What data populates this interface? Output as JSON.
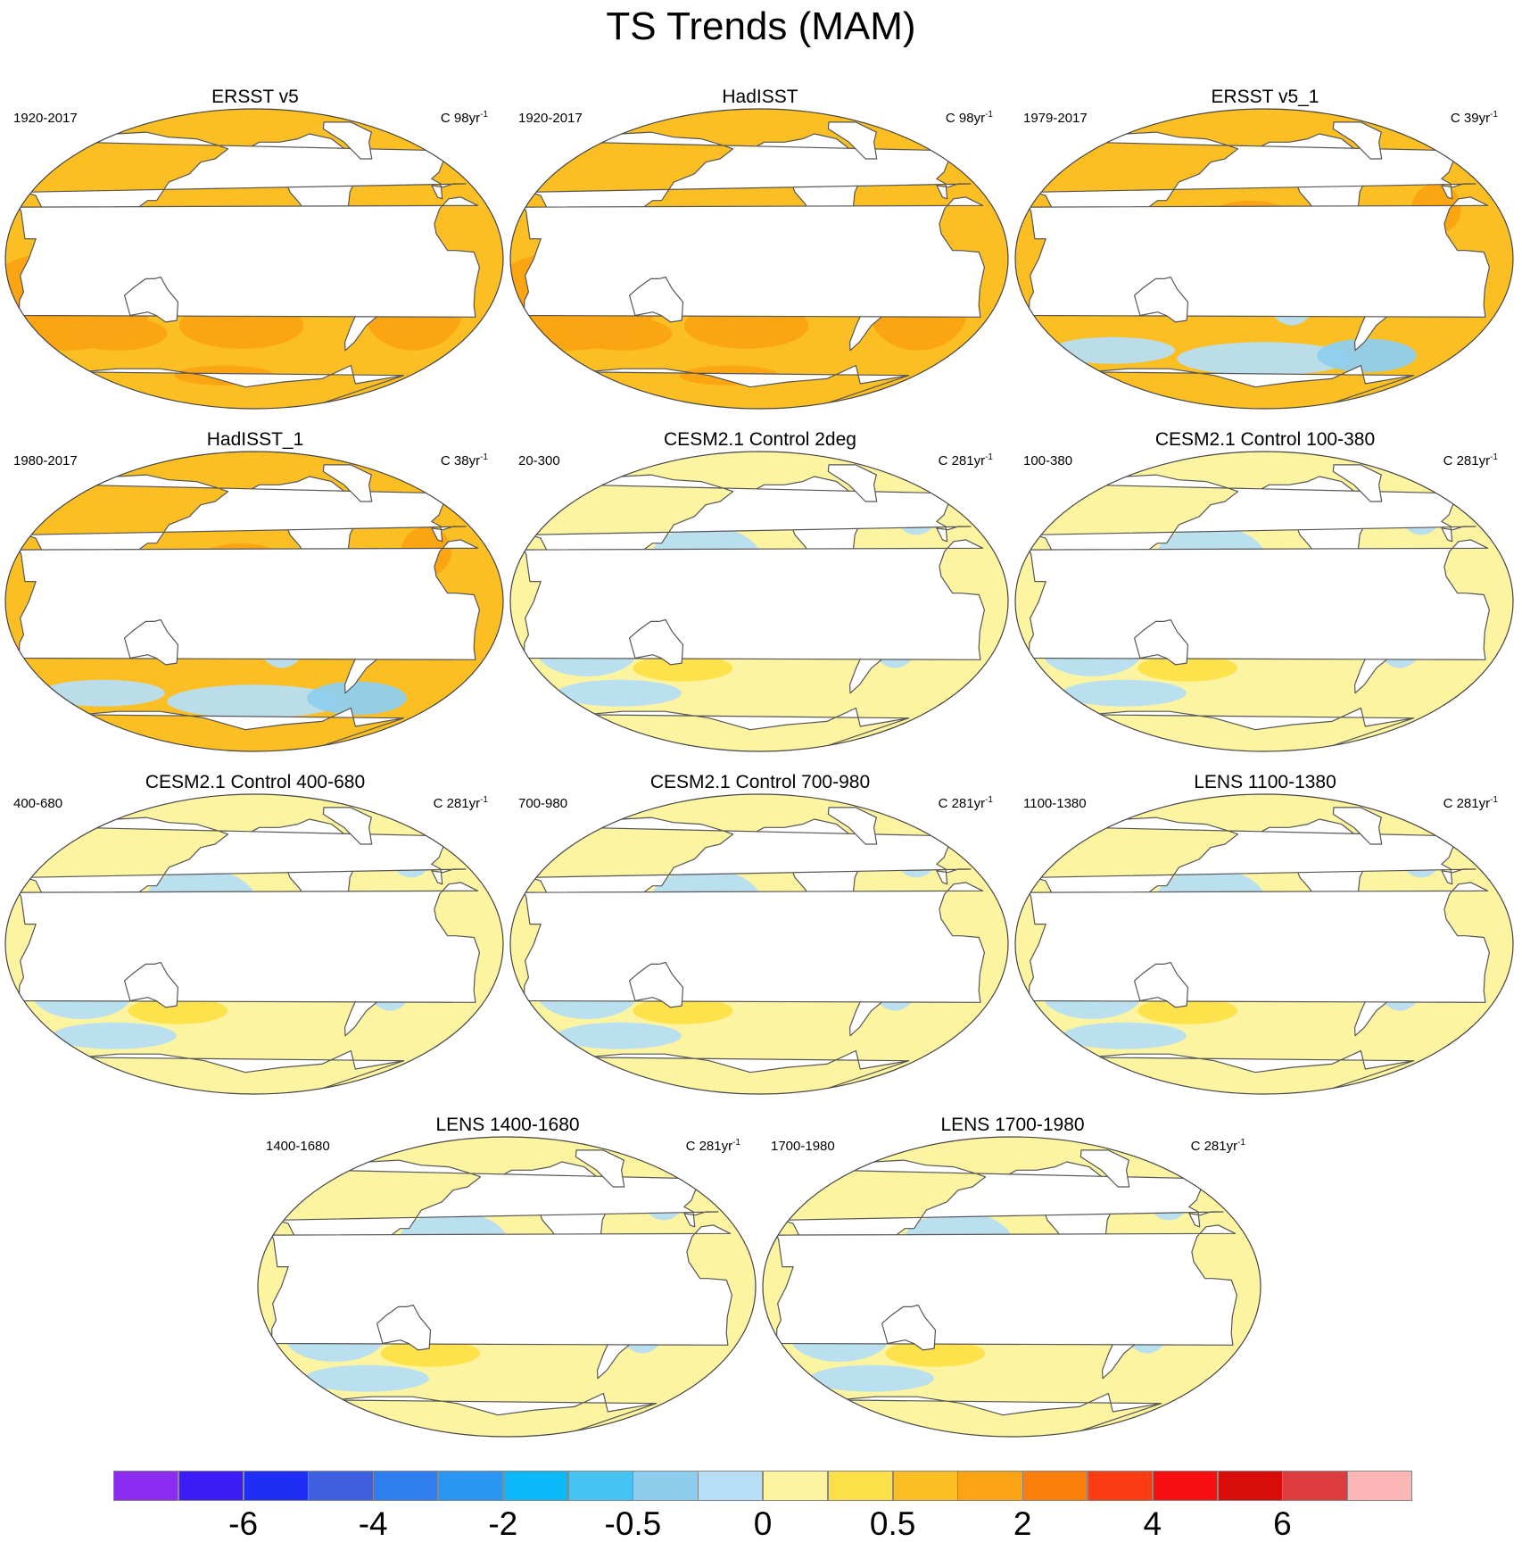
{
  "title": "TS Trends (MAM)",
  "panels": [
    {
      "title": "ERSST v5",
      "period": "1920-2017",
      "units": "C 98yr",
      "units_exp": "-1",
      "pattern": "warm"
    },
    {
      "title": "HadISST",
      "period": "1920-2017",
      "units": "C 98yr",
      "units_exp": "-1",
      "pattern": "warm"
    },
    {
      "title": "ERSST v5_1",
      "period": "1979-2017",
      "units": "C 39yr",
      "units_exp": "-1",
      "pattern": "recent"
    },
    {
      "title": "HadISST_1",
      "period": "1980-2017",
      "units": "C 38yr",
      "units_exp": "-1",
      "pattern": "recent"
    },
    {
      "title": "CESM2.1 Control 2deg",
      "period": "20-300",
      "units": "C 281yr",
      "units_exp": "-1",
      "pattern": "control"
    },
    {
      "title": "CESM2.1 Control 100-380",
      "period": "100-380",
      "units": "C 281yr",
      "units_exp": "-1",
      "pattern": "control"
    },
    {
      "title": "CESM2.1 Control 400-680",
      "period": "400-680",
      "units": "C 281yr",
      "units_exp": "-1",
      "pattern": "control"
    },
    {
      "title": "CESM2.1 Control 700-980",
      "period": "700-980",
      "units": "C 281yr",
      "units_exp": "-1",
      "pattern": "control"
    },
    {
      "title": "LENS 1100-1380",
      "period": "1100-1380",
      "units": "C 281yr",
      "units_exp": "-1",
      "pattern": "control"
    },
    {
      "title": "LENS 1400-1680",
      "period": "1400-1680",
      "units": "C 281yr",
      "units_exp": "-1",
      "pattern": "control"
    },
    {
      "title": "LENS 1700-1980",
      "period": "1700-1980",
      "units": "C 281yr",
      "units_exp": "-1",
      "pattern": "control"
    }
  ],
  "colorbar": {
    "colors": [
      "#8b2cf0",
      "#3d1bf6",
      "#1f2ef5",
      "#3d5fe0",
      "#2f7ef0",
      "#2b95f2",
      "#0cb8f8",
      "#45c3f2",
      "#8fcdee",
      "#b6def4",
      "#fdf4a1",
      "#fde047",
      "#fbbf24",
      "#fba313",
      "#fb7d0b",
      "#fb3b12",
      "#f90f12",
      "#d90c0c",
      "#dc3c3e",
      "#fdb6b6"
    ],
    "labels": [
      "-6",
      "-4",
      "-2",
      "-0.5",
      "0",
      "0.5",
      "2",
      "4",
      "6"
    ],
    "label_boundaries": [
      2,
      4,
      6,
      8,
      10,
      12,
      14,
      16,
      18
    ]
  },
  "legend_label_colors": {
    "land": "#ffffff",
    "coast": "#555555",
    "frame": "#444444"
  }
}
